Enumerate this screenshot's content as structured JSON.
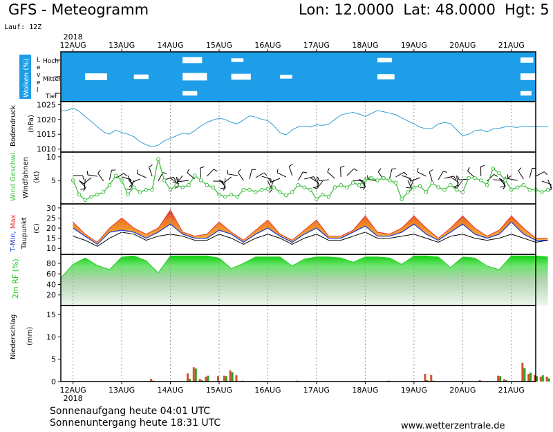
{
  "header": {
    "title": "GFS - Meteogramm",
    "location": "Lon: 12.0000  Lat: 48.0000  Hgt: 5",
    "run": "Lauf: 12Z"
  },
  "footer": {
    "sunrise": "Sonnenaufgang heute 04:01 UTC",
    "sunset": "Sonnenuntergang heute 18:31 UTC",
    "website": "www.wetterzentrale.de"
  },
  "time_axis": {
    "year": "2018",
    "days": [
      "12AUG",
      "13AUG",
      "14AUG",
      "15AUG",
      "16AUG",
      "17AUG",
      "18AUG",
      "19AUG",
      "20AUG",
      "21AUG"
    ]
  },
  "colors": {
    "cloud": "#1e9ee8",
    "pressure": "#2e9fd4",
    "wind": "#3fbf3f",
    "humidity": "#22cc22",
    "precip_red": "#d4502a",
    "precip_green": "#2ca02c",
    "tmax": "#e8352a",
    "tmin": "#1a3ad8"
  },
  "chart_data": [
    {
      "type": "area",
      "panel": "clouds",
      "ylabel": "Wolken (%)",
      "level_label": "Level",
      "levels": [
        "Hoch",
        "Mittel",
        "Tief"
      ],
      "x_hours": [
        0,
        24,
        48,
        72,
        96,
        120,
        144,
        168,
        192,
        216,
        234
      ],
      "cover_percent": {
        "Hoch": [
          80,
          90,
          60,
          75,
          85,
          95,
          70,
          85,
          90,
          65,
          80
        ],
        "Mittel": [
          55,
          70,
          50,
          60,
          75,
          90,
          65,
          80,
          85,
          55,
          70
        ],
        "Tief": [
          85,
          90,
          70,
          80,
          88,
          92,
          80,
          88,
          90,
          70,
          85
        ]
      }
    },
    {
      "type": "line",
      "panel": "pressure",
      "ylabel": "Bodendruck",
      "unit": "(hPa)",
      "ylim": [
        1009,
        1026
      ],
      "yticks": [
        1010,
        1015,
        1020,
        1025
      ],
      "x_hours": [
        -6,
        -3,
        0,
        3,
        6,
        9,
        12,
        15,
        18,
        21,
        24,
        27,
        30,
        33,
        36,
        39,
        42,
        45,
        48,
        51,
        54,
        57,
        60,
        63,
        66,
        69,
        72,
        75,
        78,
        81,
        84,
        87,
        90,
        93,
        96,
        99,
        102,
        105,
        108,
        111,
        114,
        117,
        120,
        123,
        126,
        129,
        132,
        135,
        138,
        141,
        144,
        147,
        150,
        153,
        156,
        159,
        162,
        165,
        168,
        171,
        174,
        177,
        180,
        183,
        186,
        189,
        192,
        195,
        198,
        201,
        204,
        207,
        210,
        213,
        216,
        219,
        222,
        225,
        228,
        231,
        234
      ],
      "values": [
        1022.8,
        1023.0,
        1023.8,
        1022.8,
        1021.0,
        1019.3,
        1017.5,
        1015.8,
        1015.0,
        1016.4,
        1015.6,
        1015.0,
        1014.2,
        1012.5,
        1011.5,
        1010.8,
        1011.3,
        1012.8,
        1013.6,
        1014.5,
        1015.4,
        1015.0,
        1016.2,
        1017.8,
        1019.0,
        1019.8,
        1020.4,
        1020.0,
        1019.0,
        1018.5,
        1019.8,
        1021.2,
        1020.8,
        1020.0,
        1019.6,
        1017.8,
        1015.5,
        1014.8,
        1016.5,
        1017.5,
        1017.8,
        1017.4,
        1018.2,
        1018.0,
        1018.4,
        1020.0,
        1021.5,
        1022.0,
        1022.4,
        1021.8,
        1021.0,
        1022.0,
        1023.0,
        1022.6,
        1022.1,
        1021.6,
        1020.5,
        1019.5,
        1018.5,
        1017.4,
        1016.8,
        1017.0,
        1018.5,
        1019.0,
        1018.6,
        1016.5,
        1014.5,
        1015.0,
        1016.2,
        1016.5,
        1015.8,
        1016.8,
        1017.0,
        1017.5,
        1017.5,
        1017.3,
        1017.8,
        1017.5,
        1017.5,
        1017.5,
        1017.5
      ]
    },
    {
      "type": "line",
      "panel": "wind",
      "ylabel": "Wind Geschwi.",
      "ylabel2": "Windfahnen",
      "unit": "(kt)",
      "ylim": [
        0,
        11
      ],
      "yticks": [
        5,
        10
      ],
      "x_hours": [
        0,
        3,
        6,
        9,
        12,
        15,
        18,
        21,
        24,
        27,
        30,
        33,
        36,
        39,
        42,
        45,
        48,
        51,
        54,
        57,
        60,
        63,
        66,
        69,
        72,
        75,
        78,
        81,
        84,
        87,
        90,
        93,
        96,
        99,
        102,
        105,
        108,
        111,
        114,
        117,
        120,
        123,
        126,
        129,
        132,
        135,
        138,
        141,
        144,
        147,
        150,
        153,
        156,
        159,
        162,
        165,
        168,
        171,
        174,
        177,
        180,
        183,
        186,
        189,
        192,
        195,
        198,
        201,
        204,
        207,
        210,
        213,
        216,
        219,
        222,
        225,
        228,
        231,
        234
      ],
      "values": [
        5,
        2,
        0.8,
        1.5,
        2,
        2.5,
        4,
        6,
        5,
        2,
        3.5,
        2.5,
        3,
        3,
        9.5,
        5,
        3,
        4,
        3.5,
        4,
        6,
        5,
        4,
        3.5,
        2,
        1.5,
        2,
        1.5,
        3,
        3,
        2.5,
        3,
        3.2,
        3.5,
        2.5,
        1.8,
        2.5,
        4,
        3.5,
        3,
        1,
        2,
        1.5,
        3.5,
        4,
        3.5,
        4.5,
        4,
        5,
        5.5,
        5,
        5.5,
        5,
        4.5,
        1,
        2.5,
        3.5,
        3.8,
        2.5,
        4.5,
        3.5,
        3,
        4,
        3,
        2.5,
        5.5,
        5.5,
        5,
        4,
        7.5,
        6.5,
        5,
        3,
        3.5,
        4,
        3,
        3,
        2.5,
        3
      ]
    },
    {
      "type": "area",
      "panel": "temperature",
      "ylabel": "T-Min, Max",
      "ylabel2": "Taupunkt",
      "unit": "(C)",
      "ylim": [
        7,
        32
      ],
      "yticks": [
        10,
        15,
        20,
        25,
        30
      ],
      "x_hours": [
        0,
        6,
        12,
        18,
        24,
        30,
        36,
        42,
        48,
        54,
        60,
        66,
        72,
        78,
        84,
        90,
        96,
        102,
        108,
        114,
        120,
        126,
        132,
        138,
        144,
        150,
        156,
        162,
        168,
        174,
        180,
        186,
        192,
        198,
        204,
        210,
        216,
        222,
        228,
        234
      ],
      "series": [
        {
          "name": "T-Max",
          "values": [
            23,
            17,
            13,
            20,
            25,
            20,
            17,
            20,
            29,
            18,
            16,
            17,
            23,
            18,
            14,
            19,
            24,
            17,
            14,
            19,
            24,
            16,
            16,
            19,
            26,
            18,
            17,
            20,
            26,
            20,
            15,
            20,
            26,
            20,
            16,
            19,
            26,
            20,
            15,
            15
          ]
        },
        {
          "name": "T-Min",
          "values": [
            20,
            16,
            12,
            18,
            19,
            18,
            15,
            18,
            22,
            17,
            15,
            15,
            19,
            17,
            13,
            17,
            20,
            16,
            13,
            17,
            20,
            15,
            15,
            18,
            21,
            16,
            16,
            18,
            22,
            17,
            14,
            18,
            22,
            17,
            15,
            17,
            23,
            17,
            14,
            14
          ]
        },
        {
          "name": "Taupunkt",
          "values": [
            16,
            14,
            11,
            15,
            18,
            17,
            14,
            16,
            17,
            16,
            14,
            14,
            17,
            15,
            12,
            15,
            17,
            15,
            12,
            15,
            17,
            14,
            14,
            16,
            18,
            15,
            15,
            16,
            17,
            15,
            13,
            16,
            17,
            15,
            14,
            15,
            17,
            15,
            13,
            14
          ]
        }
      ]
    },
    {
      "type": "area",
      "panel": "humidity",
      "ylabel": "2m RF (%)",
      "ylim": [
        0,
        97
      ],
      "yticks": [
        20,
        40,
        60,
        80
      ],
      "x_hours": [
        -6,
        0,
        6,
        12,
        18,
        24,
        30,
        36,
        42,
        48,
        54,
        60,
        66,
        72,
        78,
        84,
        90,
        96,
        102,
        108,
        114,
        120,
        126,
        132,
        138,
        144,
        150,
        156,
        162,
        168,
        174,
        180,
        186,
        192,
        198,
        204,
        210,
        216,
        222,
        228,
        234
      ],
      "values": [
        52,
        78,
        90,
        76,
        68,
        92,
        94,
        85,
        62,
        94,
        94,
        94,
        94,
        90,
        70,
        80,
        92,
        92,
        92,
        75,
        88,
        92,
        92,
        90,
        82,
        92,
        92,
        90,
        78,
        94,
        94,
        92,
        72,
        92,
        90,
        75,
        68,
        94,
        94,
        94,
        92
      ]
    },
    {
      "type": "bar",
      "panel": "precipitation",
      "ylabel": "Niederschlag",
      "unit": "(mm)",
      "ylim": [
        0,
        17
      ],
      "yticks": [
        0,
        5,
        10,
        15
      ],
      "x_hours": [
        39,
        57,
        60,
        63,
        66,
        72,
        75,
        78,
        81,
        84,
        87,
        111,
        114,
        156,
        174,
        177,
        201,
        210,
        213,
        222,
        225,
        228,
        231,
        234
      ],
      "series": [
        {
          "name": "red",
          "values": [
            0.6,
            1.8,
            3.2,
            0.6,
            1.1,
            1.2,
            1.3,
            2.5,
            1.4,
            0.2,
            0.1,
            0.2,
            0.1,
            0.2,
            1.7,
            1.5,
            0.3,
            1.3,
            0.5,
            4.2,
            1.7,
            1.5,
            1.1,
            1.1
          ]
        },
        {
          "name": "green",
          "values": [
            0.2,
            0.6,
            2.9,
            0.3,
            1.3,
            0.1,
            1.2,
            2.1,
            0.1,
            0.1,
            0.1,
            0.1,
            0.1,
            0.1,
            0.3,
            0.2,
            0.1,
            1.2,
            0.3,
            3.0,
            2.0,
            1.2,
            1.4,
            0.7
          ]
        }
      ]
    }
  ]
}
